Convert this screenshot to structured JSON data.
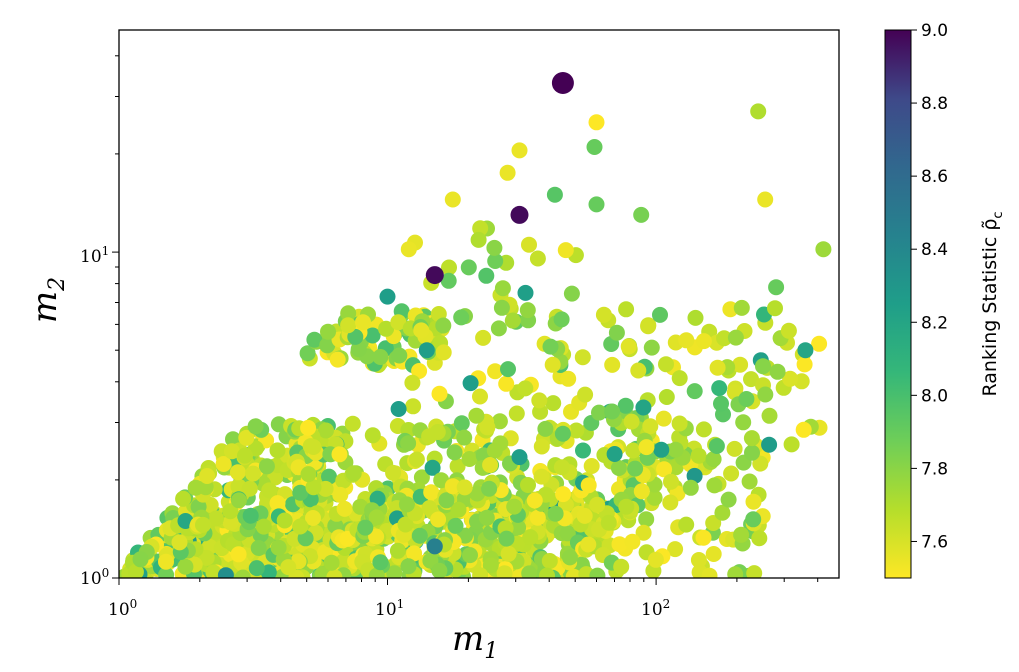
{
  "chart_data": {
    "type": "scatter",
    "x_scale": "log",
    "y_scale": "log",
    "xlim": [
      1,
      480
    ],
    "ylim": [
      1,
      48
    ],
    "xlabel": "m_1",
    "ylabel": "m_2",
    "x_ticks": [
      {
        "value": 1,
        "base": "10",
        "exp": "0"
      },
      {
        "value": 10,
        "base": "10",
        "exp": "1"
      },
      {
        "value": 100,
        "base": "10",
        "exp": "2"
      }
    ],
    "y_ticks": [
      {
        "value": 1,
        "base": "10",
        "exp": "0"
      },
      {
        "value": 10,
        "base": "10",
        "exp": "1"
      }
    ],
    "colorbar": {
      "label": "Ranking Statistic ρ̃",
      "label_subscript": "c",
      "range": [
        7.5,
        9.0
      ],
      "ticks": [
        "7.6",
        "7.8",
        "8.0",
        "8.2",
        "8.4",
        "8.6",
        "8.8",
        "9.0"
      ],
      "colormap": "viridis"
    },
    "grid": false,
    "notable_points": [
      {
        "x": 45,
        "y": 33,
        "rho": 9.0
      },
      {
        "x": 31,
        "y": 13,
        "rho": 8.98
      },
      {
        "x": 15,
        "y": 8.5,
        "rho": 8.98
      },
      {
        "x": 15,
        "y": 1.25,
        "rho": 8.45
      },
      {
        "x": 2.5,
        "y": 1.02,
        "rho": 8.35
      },
      {
        "x": 10,
        "y": 7.3,
        "rho": 8.25
      },
      {
        "x": 14,
        "y": 5.0,
        "rho": 8.25
      },
      {
        "x": 11,
        "y": 3.3,
        "rho": 8.25
      },
      {
        "x": 31,
        "y": 2.35,
        "rho": 8.25
      },
      {
        "x": 360,
        "y": 5.0,
        "rho": 8.2
      },
      {
        "x": 59,
        "y": 21,
        "rho": 7.9
      },
      {
        "x": 42,
        "y": 15,
        "rho": 7.95
      },
      {
        "x": 60,
        "y": 14,
        "rho": 7.9
      },
      {
        "x": 88,
        "y": 13,
        "rho": 7.85
      },
      {
        "x": 240,
        "y": 27,
        "rho": 7.7
      },
      {
        "x": 255,
        "y": 14.5,
        "rho": 7.55
      },
      {
        "x": 420,
        "y": 10.2,
        "rho": 7.75
      },
      {
        "x": 280,
        "y": 7.8,
        "rho": 7.9
      },
      {
        "x": 60,
        "y": 25,
        "rho": 7.5
      },
      {
        "x": 31,
        "y": 20.5,
        "rho": 7.55
      },
      {
        "x": 28,
        "y": 17.5,
        "rho": 7.55
      },
      {
        "x": 17.5,
        "y": 14.5,
        "rho": 7.55
      },
      {
        "x": 25,
        "y": 10.3,
        "rho": 7.8
      },
      {
        "x": 12,
        "y": 10.2,
        "rho": 7.55
      }
    ],
    "cloud_regions": [
      {
        "x": [
          1.0,
          8.0
        ],
        "y": [
          1.0,
          1.6
        ],
        "count": 380
      },
      {
        "x": [
          1.5,
          6.0
        ],
        "y": [
          1.4,
          3.0
        ],
        "count": 200
      },
      {
        "x": [
          4.5,
          14.0
        ],
        "y": [
          1.3,
          3.0
        ],
        "count": 130
      },
      {
        "x": [
          8.0,
          60.0
        ],
        "y": [
          1.0,
          1.8
        ],
        "count": 340
      },
      {
        "x": [
          14.0,
          100.0
        ],
        "y": [
          1.5,
          3.3
        ],
        "count": 150
      },
      {
        "x": [
          60.0,
          250.0
        ],
        "y": [
          1.0,
          2.6
        ],
        "count": 110
      },
      {
        "x": [
          60.0,
          420.0
        ],
        "y": [
          2.4,
          7.0
        ],
        "count": 90
      },
      {
        "x": [
          5.0,
          16.0
        ],
        "y": [
          4.5,
          6.6
        ],
        "count": 90
      },
      {
        "x": [
          12.0,
          55.0
        ],
        "y": [
          3.2,
          12.0
        ],
        "count": 70
      }
    ]
  }
}
